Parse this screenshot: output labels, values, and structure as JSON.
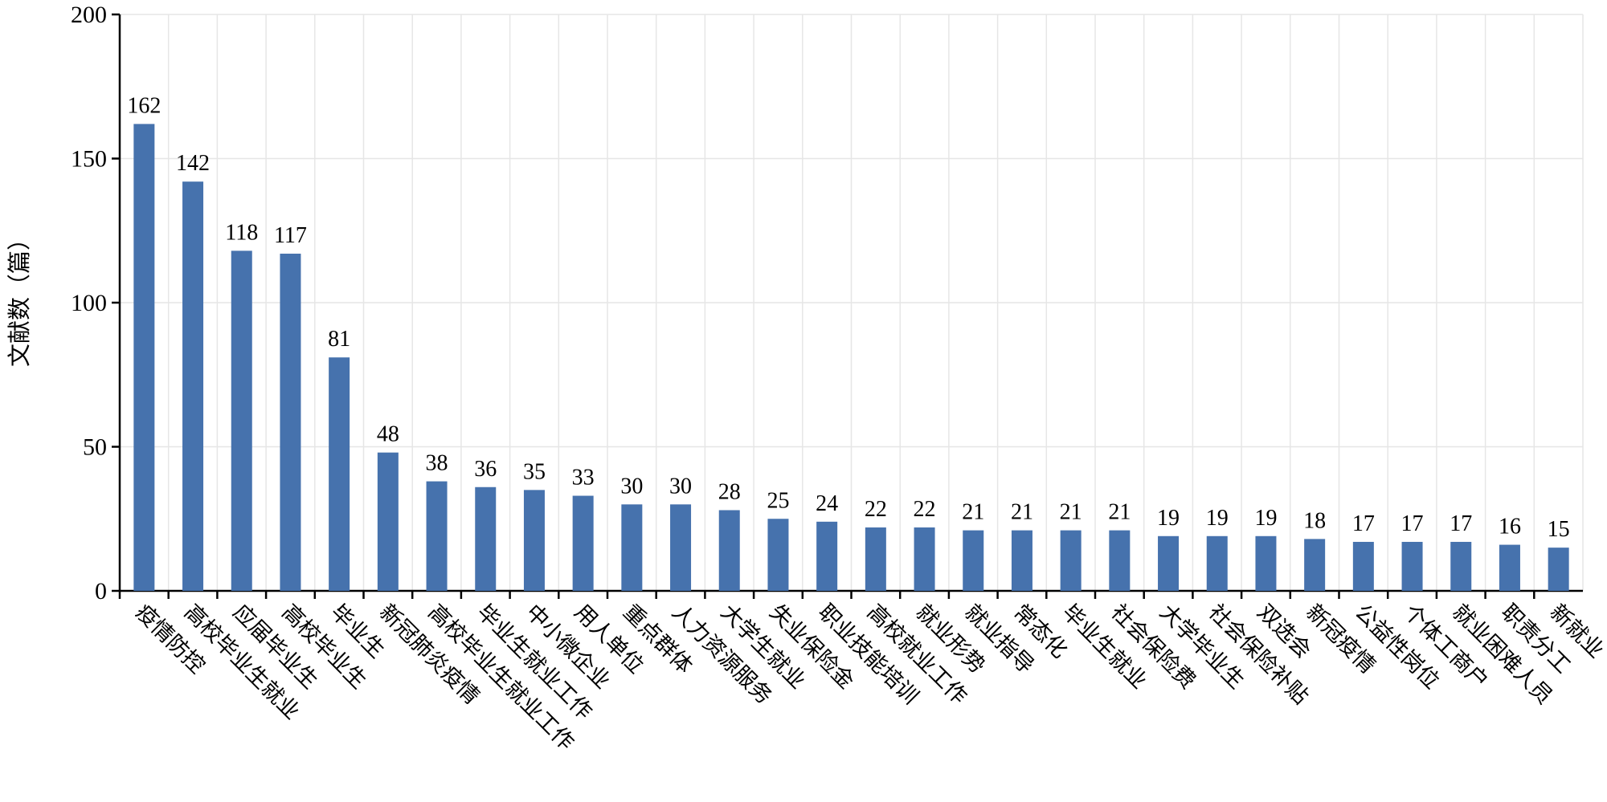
{
  "chart_data": {
    "type": "bar",
    "y_label": "文献数（篇）",
    "categories": [
      "疫情防控",
      "高校毕业生就业",
      "应届毕业生",
      "高校毕业生",
      "毕业生",
      "新冠肺炎疫情",
      "高校毕业生就业工作",
      "毕业生就业工作",
      "中小微企业",
      "用人单位",
      "重点群体",
      "人力资源服务",
      "大学生就业",
      "失业保险金",
      "职业技能培训",
      "高校就业工作",
      "就业形势",
      "就业指导",
      "常态化",
      "毕业生就业",
      "社会保险费",
      "大学毕业生",
      "社会保险补贴",
      "双选会",
      "新冠疫情",
      "公益性岗位",
      "个体工商户",
      "就业困难人员",
      "职责分工",
      "新就业"
    ],
    "values": [
      162,
      142,
      118,
      117,
      81,
      48,
      38,
      36,
      35,
      33,
      30,
      30,
      28,
      25,
      24,
      22,
      22,
      21,
      21,
      21,
      21,
      19,
      19,
      19,
      18,
      17,
      17,
      17,
      16,
      15
    ],
    "color": "#4672ad",
    "ylim": [
      0,
      200
    ],
    "yticks": [
      0,
      50,
      100,
      150,
      200
    ],
    "grid": true
  }
}
